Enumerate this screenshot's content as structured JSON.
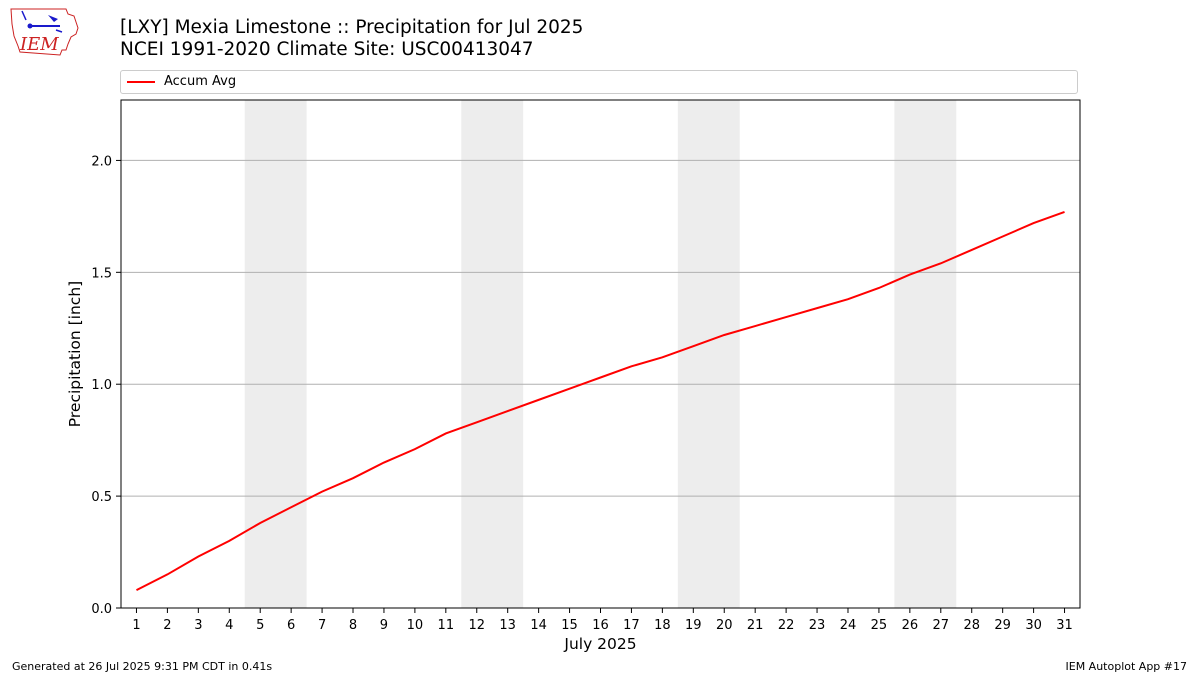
{
  "header": {
    "title_line1": "[LXY] Mexia Limestone :: Precipitation for Jul 2025",
    "title_line2": "NCEI 1991-2020 Climate Site: USC00413047",
    "logo_text": "IEM"
  },
  "footer": {
    "left": "Generated at 26 Jul 2025 9:31 PM CDT in 0.41s",
    "right": "IEM Autoplot App #17"
  },
  "colors": {
    "line": "#ff0000",
    "weekend": "#ededed",
    "grid": "#b0b0b0"
  },
  "chart_data": {
    "type": "line",
    "xlabel": "July 2025",
    "ylabel": "Precipitation [inch]",
    "xlim": [
      0.5,
      31.5
    ],
    "ylim": [
      0,
      2.27
    ],
    "x_ticks": [
      1,
      2,
      3,
      4,
      5,
      6,
      7,
      8,
      9,
      10,
      11,
      12,
      13,
      14,
      15,
      16,
      17,
      18,
      19,
      20,
      21,
      22,
      23,
      24,
      25,
      26,
      27,
      28,
      29,
      30,
      31
    ],
    "y_ticks": [
      0.0,
      0.5,
      1.0,
      1.5,
      2.0
    ],
    "y_tick_labels": [
      "0.0",
      "0.5",
      "1.0",
      "1.5",
      "2.0"
    ],
    "grid": "horizontal",
    "legend": "top",
    "weekend_spans": [
      [
        4.5,
        6.5
      ],
      [
        11.5,
        13.5
      ],
      [
        18.5,
        20.5
      ],
      [
        25.5,
        27.5
      ]
    ],
    "series": [
      {
        "name": "Accum Avg",
        "x": [
          1,
          2,
          3,
          4,
          5,
          6,
          7,
          8,
          9,
          10,
          11,
          12,
          13,
          14,
          15,
          16,
          17,
          18,
          19,
          20,
          21,
          22,
          23,
          24,
          25,
          26,
          27,
          28,
          29,
          30,
          31
        ],
        "y": [
          0.08,
          0.15,
          0.23,
          0.3,
          0.38,
          0.45,
          0.52,
          0.58,
          0.65,
          0.71,
          0.78,
          0.83,
          0.88,
          0.93,
          0.98,
          1.03,
          1.08,
          1.12,
          1.17,
          1.22,
          1.26,
          1.3,
          1.34,
          1.38,
          1.43,
          1.49,
          1.54,
          1.6,
          1.66,
          1.72,
          1.77
        ]
      }
    ]
  }
}
